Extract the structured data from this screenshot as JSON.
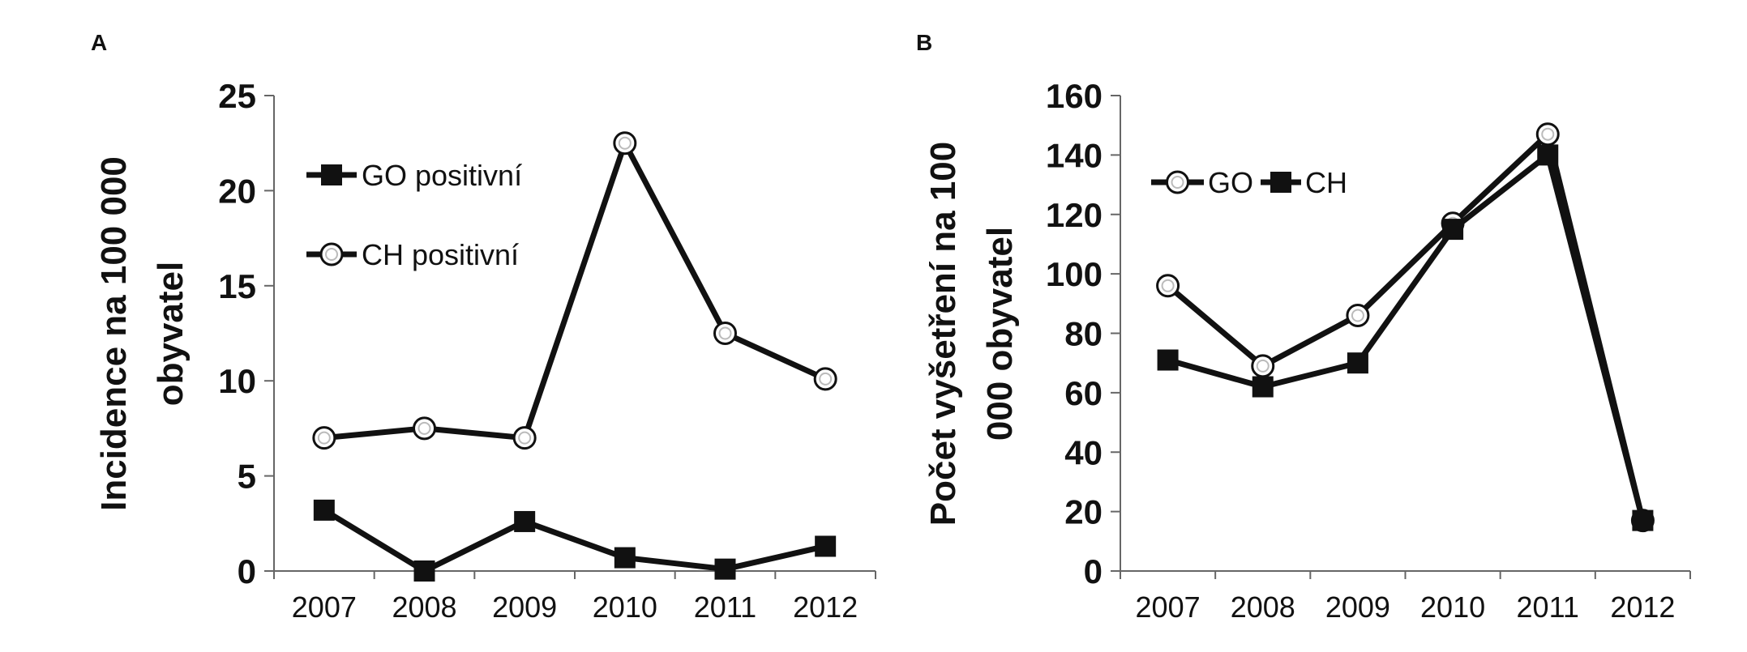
{
  "chart_data": [
    {
      "panel": "A",
      "type": "line",
      "ylabel_lines": [
        "Incidence na 100 000",
        "obyvatel"
      ],
      "categories": [
        "2007",
        "2008",
        "2009",
        "2010",
        "2011",
        "2012"
      ],
      "ylim": [
        0,
        25
      ],
      "yticks": [
        "0",
        "5",
        "10",
        "15",
        "20",
        "25"
      ],
      "grid": false,
      "legend_position": "upper-left",
      "series": [
        {
          "name": "GO positivní",
          "marker": "square",
          "values": [
            3.2,
            0.0,
            2.6,
            0.7,
            0.1,
            1.3
          ]
        },
        {
          "name": "CH positivní",
          "marker": "circle",
          "values": [
            7.0,
            7.5,
            7.0,
            22.5,
            12.5,
            10.1
          ]
        }
      ]
    },
    {
      "panel": "B",
      "type": "line",
      "ylabel_lines": [
        "Počet vyšetření na 100",
        "000 obyvatel"
      ],
      "categories": [
        "2007",
        "2008",
        "2009",
        "2010",
        "2011",
        "2012"
      ],
      "ylim": [
        0,
        160
      ],
      "yticks": [
        "0",
        "20",
        "40",
        "60",
        "80",
        "100",
        "120",
        "140",
        "160"
      ],
      "grid": false,
      "legend_position": "upper-left",
      "series": [
        {
          "name": "GO",
          "marker": "circle",
          "values": [
            96,
            69,
            86,
            117,
            147,
            17
          ]
        },
        {
          "name": "CH",
          "marker": "square",
          "values": [
            71,
            62,
            70,
            115,
            140,
            17
          ]
        }
      ]
    }
  ]
}
